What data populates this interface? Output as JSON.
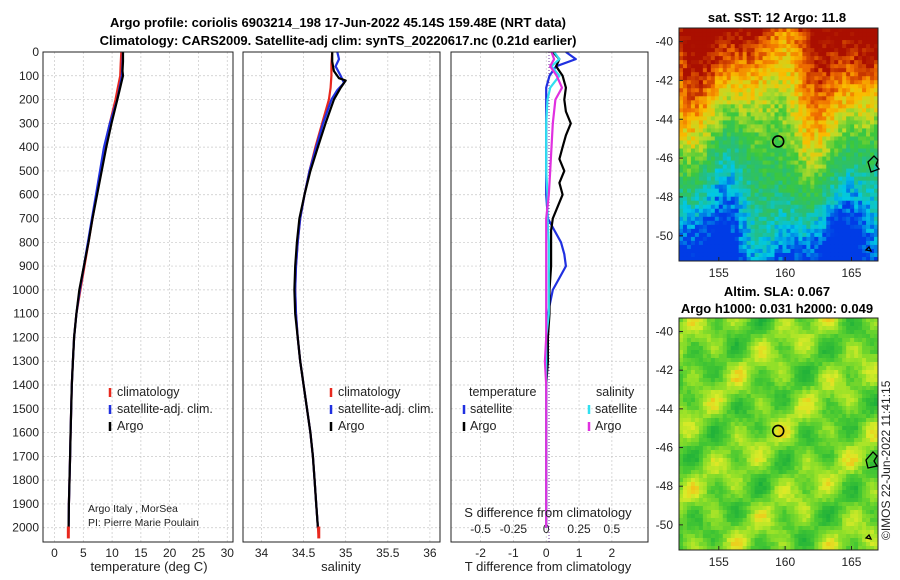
{
  "header": {
    "title_line1": "Argo profile: coriolis 6903214_198 17-Jun-2022 45.14S 159.48E (NRT data)",
    "title_line2": "Climatology: CARS2009. Satellite-adj clim: synTS_20220617.nc (0.21d earlier)"
  },
  "colors": {
    "climatology": "#e8281e",
    "satellite": "#2030e0",
    "argo": "#000000",
    "sal_satellite": "#30e0f0",
    "sal_argo": "#e030e0"
  },
  "chart_data": [
    {
      "type": "line",
      "id": "temperature",
      "xlabel": "temperature (deg C)",
      "ylabel": "",
      "xlim": [
        -2,
        31
      ],
      "ylim": [
        2060,
        0
      ],
      "xticks": [
        0,
        5,
        10,
        15,
        20,
        25,
        30
      ],
      "yticks": [
        0,
        100,
        200,
        300,
        400,
        500,
        600,
        700,
        800,
        900,
        1000,
        1100,
        1200,
        1300,
        1400,
        1500,
        1600,
        1700,
        1800,
        1900,
        2000
      ],
      "legend": [
        "climatology",
        "satellite-adj. clim.",
        "Argo"
      ],
      "note_lines": [
        "Argo Italy , MorSea",
        "PI: Pierre Marie Poulain"
      ],
      "series": [
        {
          "name": "climatology",
          "color_key": "climatology",
          "depth": [
            0,
            50,
            100,
            150,
            200,
            300,
            400,
            500,
            600,
            700,
            800,
            900,
            1000,
            1100,
            1200,
            1300,
            1400,
            1500,
            1600,
            1700,
            1800,
            1900,
            2000,
            2040
          ],
          "values": [
            11.6,
            11.5,
            11.4,
            11.0,
            10.6,
            9.6,
            8.7,
            8.0,
            7.3,
            6.6,
            5.9,
            5.2,
            4.5,
            3.8,
            3.4,
            3.2,
            3.0,
            2.9,
            2.8,
            2.7,
            2.6,
            2.5,
            2.45,
            2.4
          ]
        },
        {
          "name": "satellite-adj. clim.",
          "color_key": "satellite",
          "depth": [
            0,
            50,
            100,
            150,
            200,
            300,
            400,
            500,
            600,
            700,
            800,
            900,
            1000,
            1100,
            1200,
            1300,
            1400,
            1500,
            1600,
            1700,
            1800,
            1900,
            2000
          ],
          "values": [
            11.9,
            11.8,
            11.7,
            11.3,
            10.9,
            9.6,
            8.6,
            7.9,
            7.2,
            6.5,
            5.8,
            5.1,
            4.4,
            3.8,
            3.4,
            3.2,
            3.0,
            2.9,
            2.8,
            2.7,
            2.6,
            2.5,
            2.45
          ]
        },
        {
          "name": "Argo",
          "color_key": "argo",
          "depth": [
            0,
            40,
            80,
            100,
            130,
            160,
            200,
            300,
            400,
            500,
            600,
            700,
            800,
            900,
            1000,
            1100,
            1200,
            1300,
            1400,
            1500,
            1600,
            1700,
            1800,
            1900,
            2000
          ],
          "values": [
            11.9,
            11.9,
            11.8,
            11.9,
            11.6,
            11.3,
            10.9,
            9.9,
            9.0,
            8.2,
            7.4,
            6.6,
            5.9,
            5.1,
            4.3,
            3.8,
            3.4,
            3.2,
            3.0,
            2.9,
            2.8,
            2.7,
            2.6,
            2.5,
            2.45
          ]
        }
      ]
    },
    {
      "type": "line",
      "id": "salinity",
      "xlabel": "salinity",
      "ylabel": "",
      "xlim": [
        33.78,
        36.12
      ],
      "ylim": [
        2060,
        0
      ],
      "xticks": [
        34,
        34.5,
        35,
        35.5,
        36
      ],
      "legend": [
        "climatology",
        "satellite-adj. clim.",
        "Argo"
      ],
      "series": [
        {
          "name": "climatology",
          "color_key": "climatology",
          "depth": [
            0,
            50,
            100,
            150,
            200,
            300,
            400,
            500,
            600,
            700,
            800,
            900,
            1000,
            1100,
            1200,
            1300,
            1400,
            1500,
            1600,
            1700,
            1800,
            1900,
            2000,
            2040
          ],
          "values": [
            34.84,
            34.83,
            34.83,
            34.82,
            34.8,
            34.72,
            34.64,
            34.57,
            34.51,
            34.46,
            34.43,
            34.41,
            34.4,
            34.41,
            34.43,
            34.46,
            34.5,
            34.54,
            34.58,
            34.61,
            34.63,
            34.65,
            34.67,
            34.68
          ]
        },
        {
          "name": "satellite-adj. clim.",
          "color_key": "satellite",
          "depth": [
            0,
            30,
            60,
            100,
            130,
            160,
            200,
            300,
            400,
            500,
            600,
            700,
            800,
            900,
            1000,
            1100,
            1200,
            1300,
            1400,
            1500,
            1600,
            1700,
            1800,
            1900,
            2000
          ],
          "values": [
            34.9,
            34.92,
            34.88,
            34.94,
            34.98,
            34.9,
            34.83,
            34.73,
            34.65,
            34.57,
            34.51,
            34.46,
            34.43,
            34.41,
            34.4,
            34.41,
            34.43,
            34.46,
            34.5,
            34.54,
            34.58,
            34.61,
            34.63,
            34.65,
            34.67
          ]
        },
        {
          "name": "Argo",
          "color_key": "argo",
          "depth": [
            0,
            40,
            80,
            110,
            120,
            135,
            150,
            200,
            300,
            400,
            500,
            600,
            700,
            800,
            900,
            1000,
            1100,
            1200,
            1300,
            1400,
            1500,
            1600,
            1700,
            1800,
            1900,
            2000
          ],
          "values": [
            34.84,
            34.84,
            34.86,
            34.92,
            35.0,
            34.97,
            34.94,
            34.86,
            34.76,
            34.67,
            34.58,
            34.51,
            34.45,
            34.42,
            34.4,
            34.39,
            34.4,
            34.43,
            34.46,
            34.5,
            34.54,
            34.58,
            34.61,
            34.63,
            34.65,
            34.67
          ]
        }
      ]
    },
    {
      "type": "line",
      "id": "difference",
      "xlabel": "T difference from climatology",
      "xlabel_top": "S difference from climatology",
      "xlim": [
        -2.9,
        3.1
      ],
      "ylim": [
        2060,
        0
      ],
      "xticks": [
        -2,
        -1,
        0,
        1,
        2
      ],
      "s_ticks": [
        -0.5,
        -0.25,
        0,
        0.25,
        0.5
      ],
      "legend_temperature_title": "temperature",
      "legend_salinity_title": "salinity",
      "legend": [
        "satellite",
        "Argo",
        "satellite",
        "Argo"
      ],
      "series": [
        {
          "name": "T satellite",
          "color_key": "satellite",
          "depth": [
            0,
            30,
            60,
            100,
            150,
            200,
            300,
            400,
            500,
            600,
            700,
            750,
            800,
            850,
            900,
            950,
            1000,
            1100,
            1200,
            1300,
            1400,
            1600,
            1800,
            2000
          ],
          "values": [
            0.6,
            0.9,
            0.3,
            0.1,
            0.0,
            0.0,
            0.0,
            0.0,
            0.0,
            0.0,
            0.05,
            0.25,
            0.45,
            0.55,
            0.6,
            0.4,
            0.2,
            0.05,
            0.0,
            0.0,
            0.0,
            0.0,
            0.0,
            0.0
          ]
        },
        {
          "name": "T Argo",
          "color_key": "argo",
          "depth": [
            0,
            30,
            60,
            100,
            150,
            200,
            250,
            300,
            350,
            400,
            450,
            500,
            550,
            600,
            650,
            700,
            750,
            800,
            900,
            1000,
            1100,
            1200,
            1300,
            1400,
            1500,
            1600,
            1800,
            2000
          ],
          "values": [
            0.2,
            0.4,
            0.3,
            0.5,
            0.6,
            0.55,
            0.6,
            0.75,
            0.6,
            0.5,
            0.4,
            0.55,
            0.4,
            0.5,
            0.35,
            0.2,
            0.15,
            0.15,
            0.15,
            0.1,
            0.1,
            0.05,
            0.05,
            0.0,
            0.0,
            0.0,
            0.0,
            0.0
          ]
        },
        {
          "name": "S satellite",
          "color_key": "sal_satellite",
          "depth": [
            0,
            30,
            60,
            100,
            150,
            200,
            300,
            400,
            500,
            600,
            700,
            800,
            900,
            1000,
            1100,
            1200,
            1300,
            1400,
            1600,
            1800,
            2000
          ],
          "values": [
            0.06,
            0.1,
            0.04,
            0.1,
            0.03,
            0.01,
            0.0,
            0.0,
            0.0,
            0.01,
            0.01,
            0.02,
            0.02,
            0.02,
            0.02,
            0.0,
            0.0,
            0.0,
            0.0,
            0.0,
            0.0
          ]
        },
        {
          "name": "S Argo",
          "color_key": "sal_argo",
          "depth": [
            0,
            30,
            60,
            100,
            150,
            200,
            300,
            400,
            500,
            600,
            700,
            800,
            900,
            1000,
            1100,
            1200,
            1300,
            1400,
            1600,
            1800,
            2000
          ],
          "values": [
            0.04,
            0.06,
            0.03,
            0.08,
            0.12,
            0.07,
            0.05,
            0.04,
            0.03,
            0.02,
            0.0,
            0.0,
            0.0,
            0.0,
            0.0,
            0.0,
            -0.01,
            0.0,
            0.0,
            0.0,
            0.0
          ]
        }
      ]
    },
    {
      "type": "heatmap",
      "id": "sst_map",
      "title": "sat. SST: 12 Argo: 11.8",
      "xticks": [
        155,
        160,
        165
      ],
      "yticks": [
        -40,
        -42,
        -44,
        -46,
        -48,
        -50
      ],
      "xlim": [
        152,
        167
      ],
      "ylim": [
        -51.3,
        -39.3
      ],
      "argo_position": {
        "lon": 159.48,
        "lat": -45.14
      }
    },
    {
      "type": "heatmap",
      "id": "sla_map",
      "title_line1": "Altim. SLA: 0.067",
      "title_line2": "Argo h1000: 0.031 h2000: 0.049",
      "xticks": [
        155,
        160,
        165
      ],
      "yticks": [
        -40,
        -42,
        -44,
        -46,
        -48,
        -50
      ],
      "xlim": [
        152,
        167
      ],
      "ylim": [
        -51.3,
        -39.3
      ],
      "argo_position": {
        "lon": 159.48,
        "lat": -45.14
      }
    }
  ],
  "stamp": "©IMOS 22-Jun-2022 11:41:15"
}
